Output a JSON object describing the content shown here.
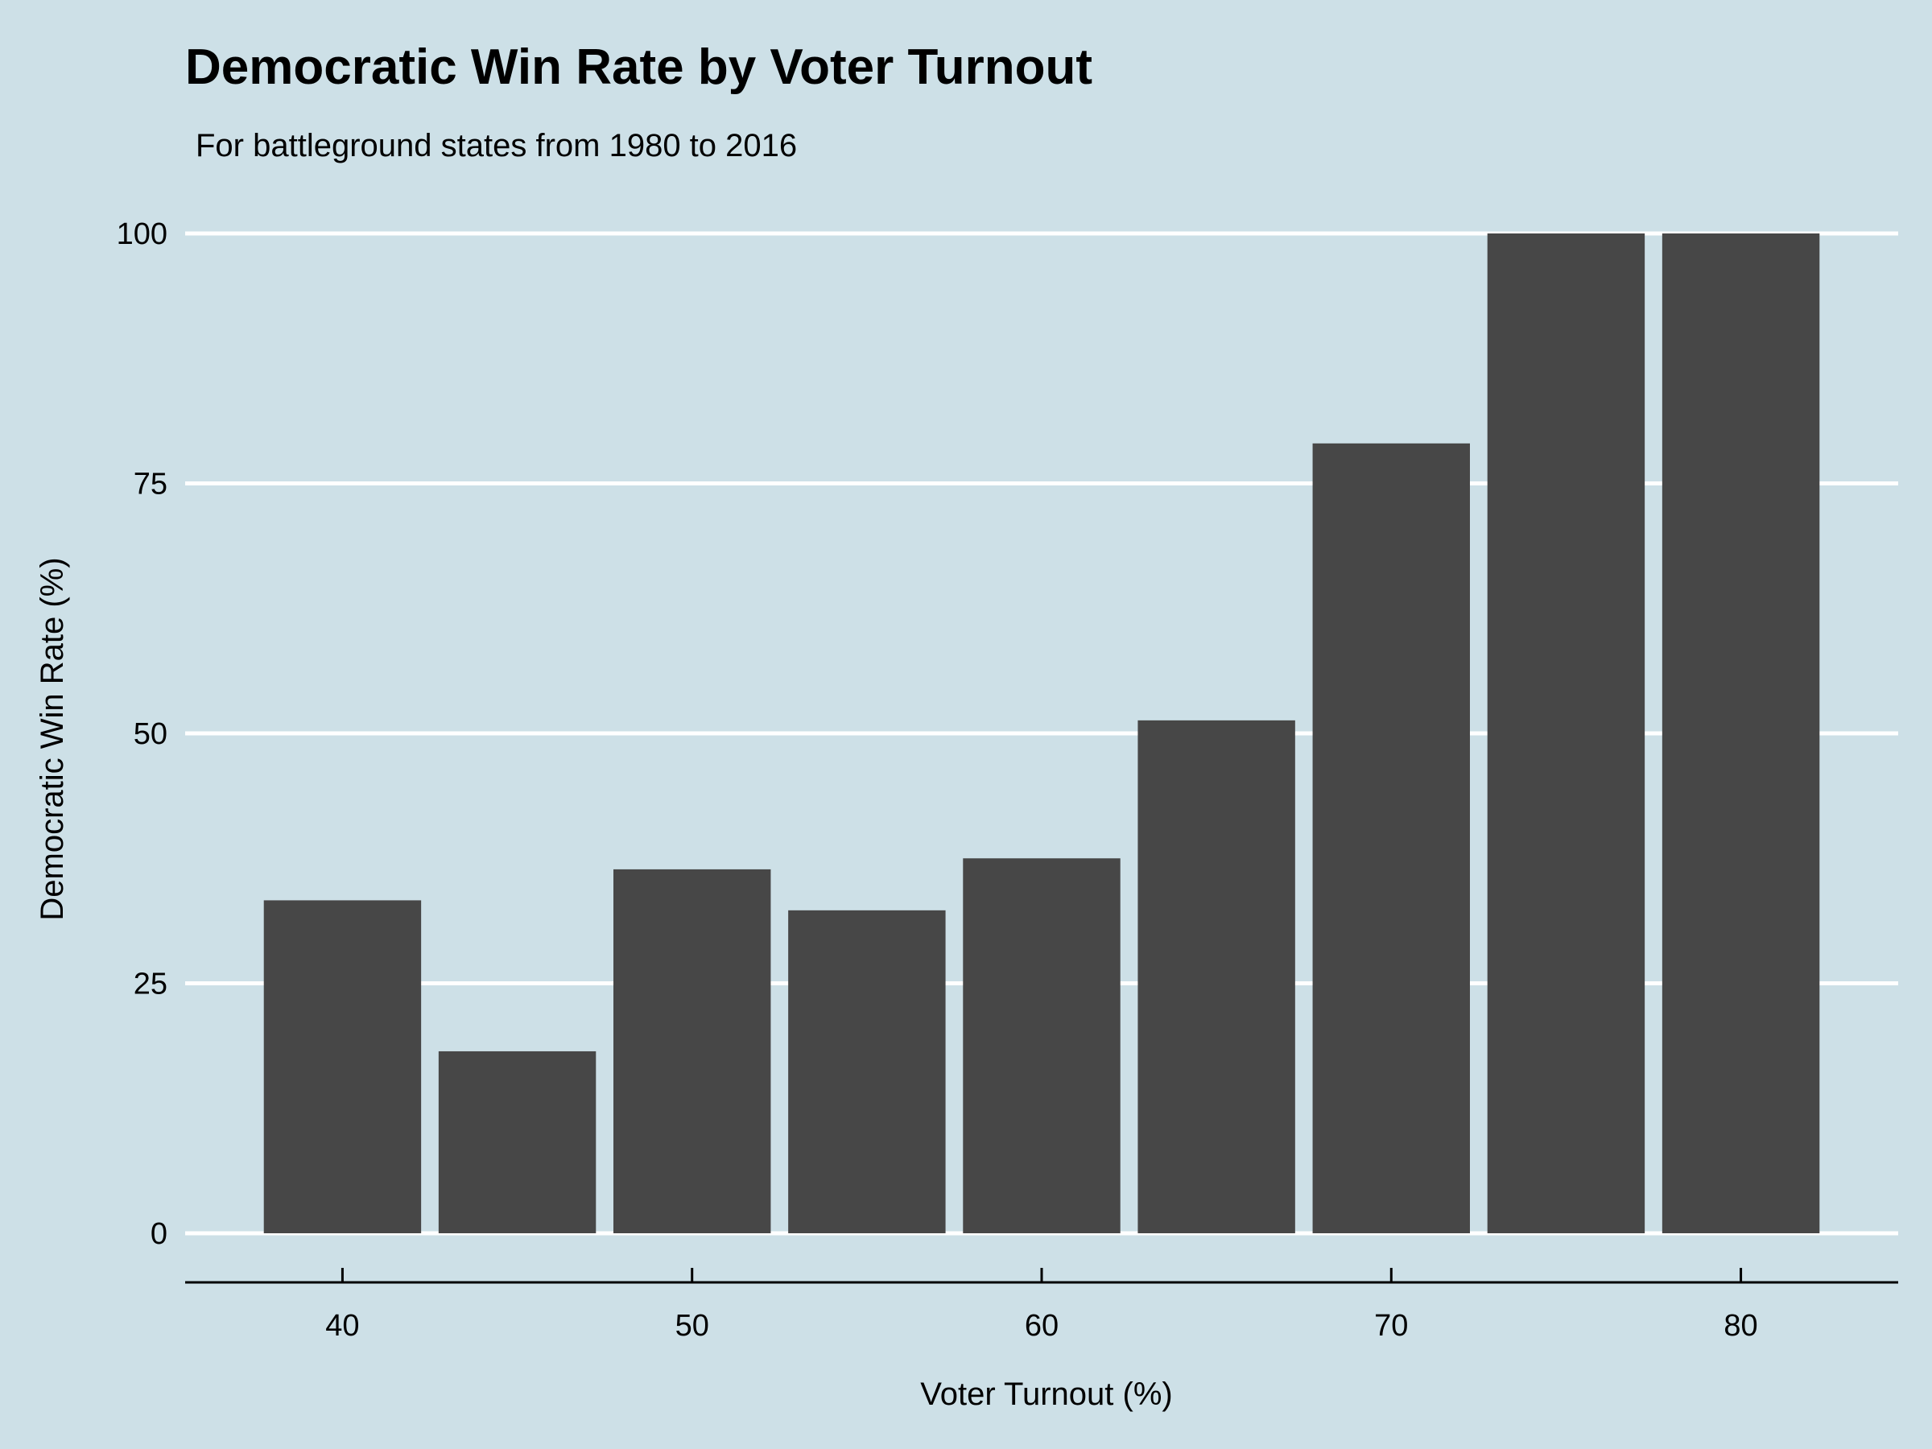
{
  "chart_data": {
    "type": "bar",
    "title": "Democratic Win Rate by Voter Turnout",
    "subtitle": "For battleground states from 1980 to 2016",
    "xlabel": "Voter Turnout (%)",
    "ylabel": "Democratic Win Rate (%)",
    "x": [
      40,
      45,
      50,
      55,
      60,
      65,
      70,
      75,
      80
    ],
    "values": [
      33.3,
      18.2,
      36.4,
      32.3,
      37.5,
      51.3,
      79.0,
      100,
      100
    ],
    "bar_width": 4.5,
    "xlim": [
      35.5,
      84.5
    ],
    "ylim": [
      0,
      100
    ],
    "x_ticks": [
      40,
      50,
      60,
      70,
      80
    ],
    "y_ticks": [
      0,
      25,
      50,
      75,
      100
    ],
    "grid": "horizontal",
    "legend": "none",
    "colors": {
      "background": "#cde0e7",
      "bar": "#474747",
      "grid": "#ffffff",
      "axis": "#000000"
    }
  }
}
